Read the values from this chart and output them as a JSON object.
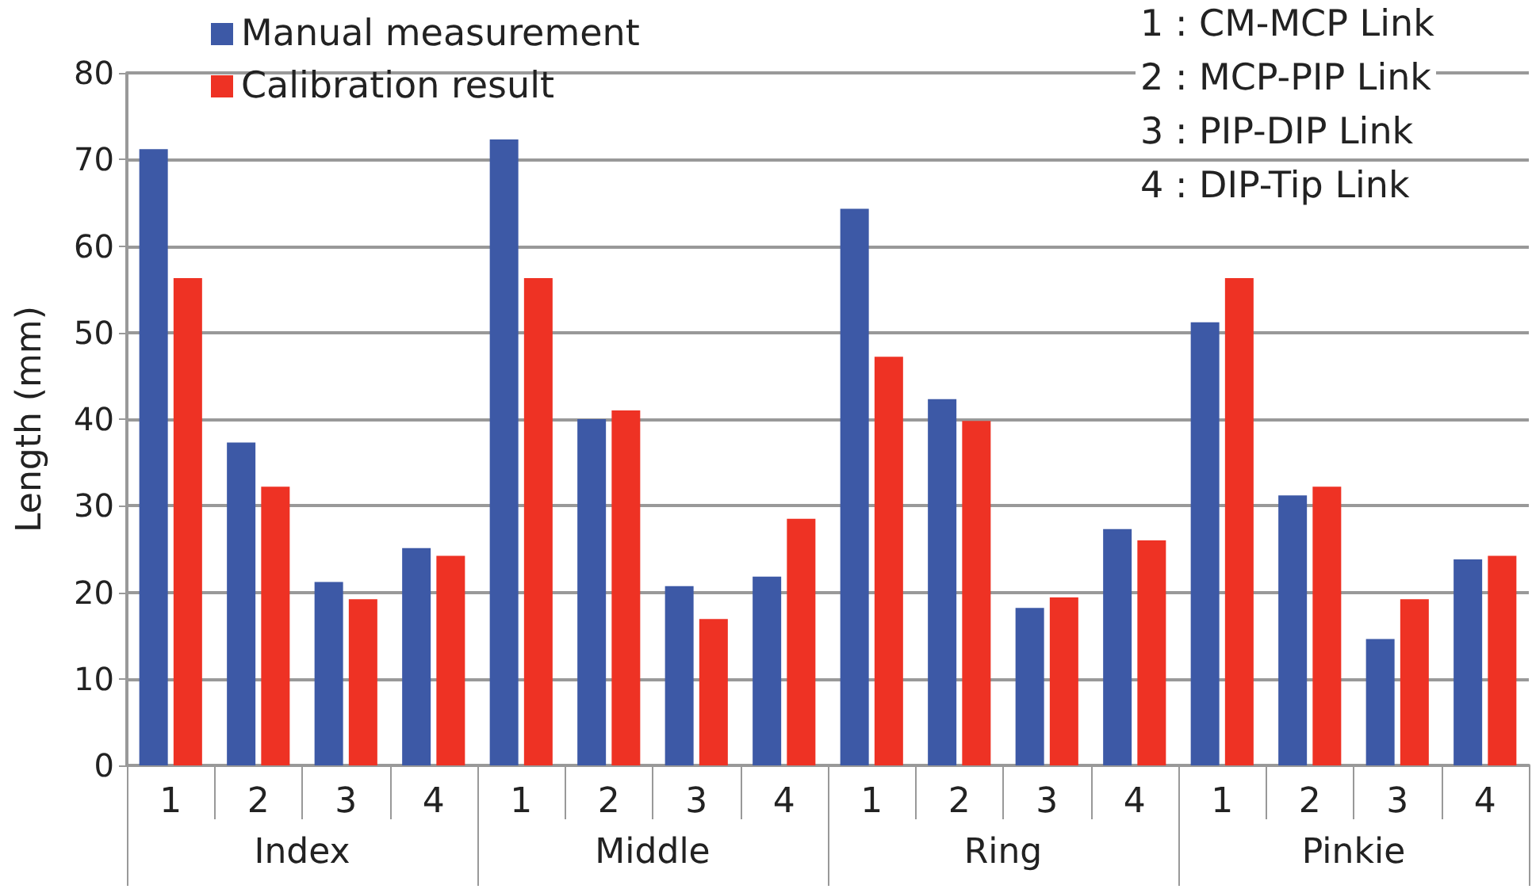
{
  "chart_data": {
    "type": "bar",
    "ylabel": "Length (mm)",
    "categories": [
      "1",
      "2",
      "3",
      "4",
      "1",
      "2",
      "3",
      "4",
      "1",
      "2",
      "3",
      "4",
      "1",
      "2",
      "3",
      "4"
    ],
    "series": [
      {
        "name": "Manual measurement",
        "color": "#3d59a6",
        "values": [
          71.2,
          37.3,
          21.2,
          25.1,
          72.3,
          40,
          20.7,
          21.8,
          64.3,
          42.3,
          18.2,
          27.3,
          51.2,
          31.2,
          14.6,
          23.8
        ]
      },
      {
        "name": "Calibration result",
        "color": "#ee3224",
        "values": [
          56.3,
          32.2,
          19.2,
          24.2,
          56.3,
          41,
          16.9,
          28.5,
          47.2,
          39.8,
          19.4,
          26,
          56.3,
          32.2,
          19.2,
          24.2
        ]
      }
    ],
    "ylim": [
      0,
      80
    ],
    "yticks": [
      0,
      10,
      20,
      30,
      40,
      50,
      60,
      70,
      80
    ],
    "grid": "y",
    "legend": "top left",
    "annotations": [
      "Index",
      "Middle",
      "Ring",
      "Pinkie",
      "1 : CM-MCP Link",
      "2 : MCP-PIP Link",
      "3 : PIP-DIP Link",
      "4 : DIP-Tip Link"
    ]
  }
}
